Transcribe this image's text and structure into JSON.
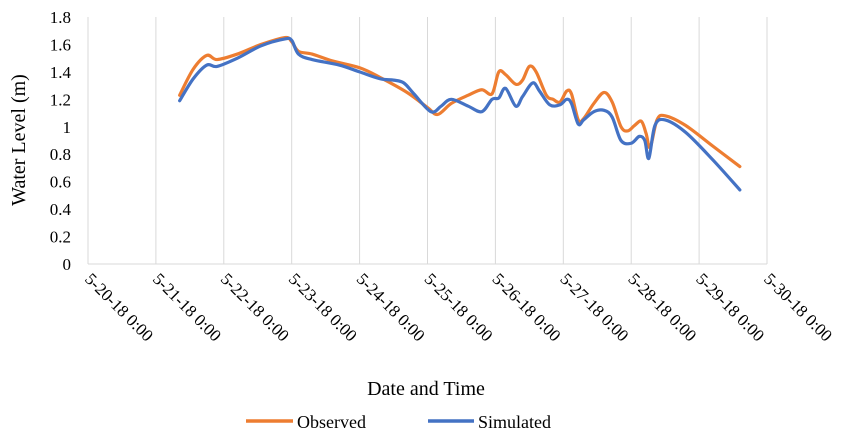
{
  "chart_data": {
    "type": "line",
    "xlabel": "Date and Time",
    "ylabel": "Water Level (m)",
    "ylim": [
      0,
      1.8
    ],
    "ytick_step": 0.2,
    "y_tick_labels": [
      "0",
      "0.2",
      "0.4",
      "0.6",
      "0.8",
      "1",
      "1.2",
      "1.4",
      "1.6",
      "1.8"
    ],
    "x_tick_labels": [
      "5-20-18 0:00",
      "5-21-18 0:00",
      "5-22-18 0:00",
      "5-23-18 0:00",
      "5-24-18 0:00",
      "5-25-18 0:00",
      "5-26-18 0:00",
      "5-27-18 0:00",
      "5-28-18 0:00",
      "5-29-18 0:00",
      "5-30-18 0:00"
    ],
    "x_unit": "days since 5-20-18 0:00",
    "xlim": [
      0,
      10
    ],
    "grid": "vertical",
    "legend_position": "bottom",
    "series": [
      {
        "name": "Observed",
        "color": "#ED7D31",
        "points": [
          [
            1.35,
            1.23
          ],
          [
            1.55,
            1.42
          ],
          [
            1.75,
            1.52
          ],
          [
            1.9,
            1.49
          ],
          [
            2.2,
            1.53
          ],
          [
            2.55,
            1.6
          ],
          [
            2.9,
            1.65
          ],
          [
            3.0,
            1.62
          ],
          [
            3.1,
            1.55
          ],
          [
            3.3,
            1.53
          ],
          [
            3.6,
            1.48
          ],
          [
            4.0,
            1.43
          ],
          [
            4.3,
            1.36
          ],
          [
            4.7,
            1.25
          ],
          [
            5.0,
            1.14
          ],
          [
            5.15,
            1.09
          ],
          [
            5.35,
            1.17
          ],
          [
            5.6,
            1.23
          ],
          [
            5.8,
            1.27
          ],
          [
            5.95,
            1.24
          ],
          [
            6.05,
            1.4
          ],
          [
            6.15,
            1.38
          ],
          [
            6.3,
            1.31
          ],
          [
            6.4,
            1.34
          ],
          [
            6.5,
            1.44
          ],
          [
            6.6,
            1.4
          ],
          [
            6.75,
            1.23
          ],
          [
            6.85,
            1.2
          ],
          [
            6.95,
            1.18
          ],
          [
            7.05,
            1.26
          ],
          [
            7.12,
            1.24
          ],
          [
            7.22,
            1.05
          ],
          [
            7.3,
            1.06
          ],
          [
            7.45,
            1.17
          ],
          [
            7.6,
            1.25
          ],
          [
            7.72,
            1.18
          ],
          [
            7.85,
            1.0
          ],
          [
            7.95,
            0.97
          ],
          [
            8.05,
            1.01
          ],
          [
            8.15,
            1.04
          ],
          [
            8.22,
            0.95
          ],
          [
            8.28,
            0.85
          ],
          [
            8.38,
            1.05
          ],
          [
            8.5,
            1.08
          ],
          [
            8.8,
            1.01
          ],
          [
            9.2,
            0.86
          ],
          [
            9.6,
            0.71
          ]
        ]
      },
      {
        "name": "Simulated",
        "color": "#4472C4",
        "points": [
          [
            1.35,
            1.19
          ],
          [
            1.55,
            1.35
          ],
          [
            1.75,
            1.45
          ],
          [
            1.9,
            1.44
          ],
          [
            2.2,
            1.5
          ],
          [
            2.55,
            1.59
          ],
          [
            2.9,
            1.64
          ],
          [
            3.0,
            1.63
          ],
          [
            3.1,
            1.53
          ],
          [
            3.3,
            1.49
          ],
          [
            3.7,
            1.45
          ],
          [
            4.0,
            1.4
          ],
          [
            4.3,
            1.35
          ],
          [
            4.5,
            1.34
          ],
          [
            4.65,
            1.32
          ],
          [
            4.8,
            1.24
          ],
          [
            5.05,
            1.11
          ],
          [
            5.2,
            1.15
          ],
          [
            5.35,
            1.2
          ],
          [
            5.6,
            1.15
          ],
          [
            5.8,
            1.11
          ],
          [
            5.95,
            1.2
          ],
          [
            6.05,
            1.21
          ],
          [
            6.15,
            1.28
          ],
          [
            6.3,
            1.15
          ],
          [
            6.4,
            1.22
          ],
          [
            6.55,
            1.32
          ],
          [
            6.65,
            1.26
          ],
          [
            6.8,
            1.16
          ],
          [
            6.95,
            1.16
          ],
          [
            7.05,
            1.2
          ],
          [
            7.12,
            1.17
          ],
          [
            7.22,
            1.02
          ],
          [
            7.3,
            1.05
          ],
          [
            7.45,
            1.11
          ],
          [
            7.6,
            1.12
          ],
          [
            7.72,
            1.07
          ],
          [
            7.85,
            0.9
          ],
          [
            8.0,
            0.88
          ],
          [
            8.12,
            0.93
          ],
          [
            8.2,
            0.9
          ],
          [
            8.26,
            0.77
          ],
          [
            8.35,
            1.01
          ],
          [
            8.5,
            1.05
          ],
          [
            8.8,
            0.96
          ],
          [
            9.2,
            0.76
          ],
          [
            9.6,
            0.54
          ]
        ]
      }
    ]
  }
}
